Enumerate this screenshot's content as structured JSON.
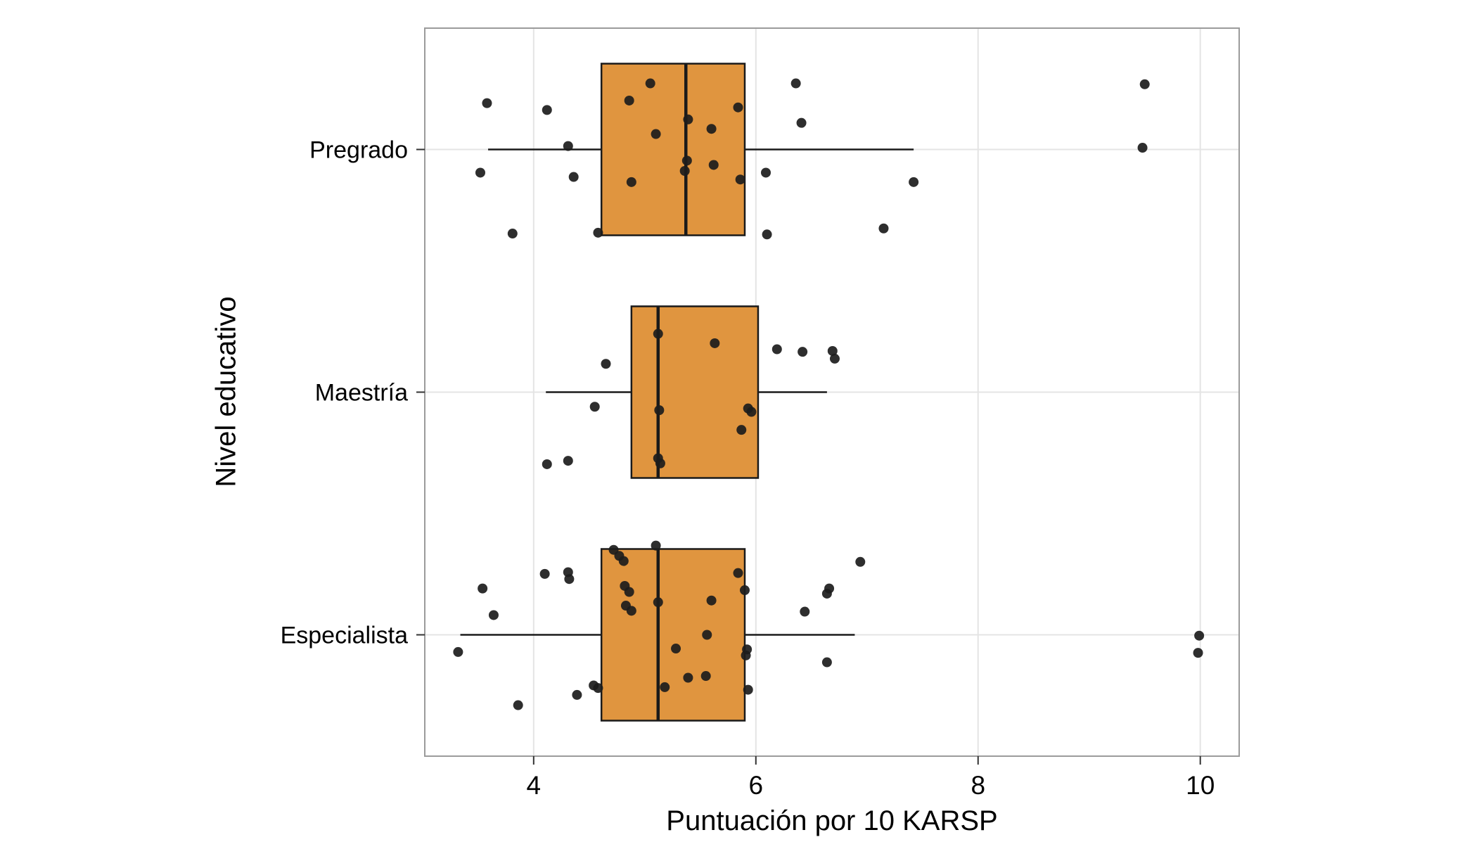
{
  "chart_data": {
    "type": "boxplot",
    "orientation": "horizontal",
    "title": "",
    "xlabel": "Puntuación por 10 KARSP",
    "ylabel": "Nivel educativo",
    "x_ticks": [
      4,
      6,
      8,
      10
    ],
    "x_range": [
      3.02,
      10.35
    ],
    "grid": true,
    "box_fill": "#E0953F",
    "box_stroke": "#1a1a1a",
    "point_color": "#1c1c1c",
    "grid_color": "#e4e4e4",
    "panel_border_color": "#9b9b9b",
    "categories": [
      {
        "label": "Pregrado",
        "whisker_low": 3.59,
        "q1": 4.61,
        "median": 5.37,
        "q3": 5.9,
        "whisker_high": 7.42,
        "points": [
          [
            3.52,
            0.27
          ],
          [
            3.58,
            -0.54
          ],
          [
            3.81,
            0.98
          ],
          [
            4.12,
            -0.46
          ],
          [
            4.31,
            -0.04
          ],
          [
            4.36,
            0.32
          ],
          [
            4.58,
            0.97
          ],
          [
            4.86,
            -0.57
          ],
          [
            4.88,
            0.38
          ],
          [
            5.05,
            -0.77
          ],
          [
            5.1,
            -0.18
          ],
          [
            5.36,
            0.25
          ],
          [
            5.38,
            0.13
          ],
          [
            5.39,
            -0.35
          ],
          [
            5.6,
            -0.24
          ],
          [
            5.62,
            0.18
          ],
          [
            5.84,
            -0.49
          ],
          [
            5.86,
            0.35
          ],
          [
            6.09,
            0.27
          ],
          [
            6.1,
            0.99
          ],
          [
            6.36,
            -0.77
          ],
          [
            6.41,
            -0.31
          ],
          [
            7.15,
            0.92
          ],
          [
            7.42,
            0.38
          ],
          [
            9.48,
            -0.02
          ],
          [
            9.5,
            -0.76
          ]
        ]
      },
      {
        "label": "Maestría",
        "whisker_low": 4.11,
        "q1": 4.88,
        "median": 5.12,
        "q3": 6.02,
        "whisker_high": 6.64,
        "points": [
          [
            4.12,
            0.84
          ],
          [
            4.31,
            0.8
          ],
          [
            4.55,
            0.17
          ],
          [
            4.65,
            -0.33
          ],
          [
            5.12,
            -0.68
          ],
          [
            5.12,
            0.77
          ],
          [
            5.13,
            0.21
          ],
          [
            5.14,
            0.83
          ],
          [
            5.63,
            -0.57
          ],
          [
            5.87,
            0.44
          ],
          [
            5.93,
            0.19
          ],
          [
            5.96,
            0.23
          ],
          [
            6.19,
            -0.5
          ],
          [
            6.42,
            -0.47
          ],
          [
            6.69,
            -0.48
          ],
          [
            6.71,
            -0.39
          ]
        ]
      },
      {
        "label": "Especialista",
        "whisker_low": 3.34,
        "q1": 4.61,
        "median": 5.12,
        "q3": 5.9,
        "whisker_high": 6.89,
        "points": [
          [
            3.32,
            0.2
          ],
          [
            3.54,
            -0.54
          ],
          [
            3.64,
            -0.23
          ],
          [
            3.86,
            0.82
          ],
          [
            4.1,
            -0.71
          ],
          [
            4.31,
            -0.73
          ],
          [
            4.32,
            -0.65
          ],
          [
            4.39,
            0.7
          ],
          [
            4.54,
            0.59
          ],
          [
            4.58,
            0.62
          ],
          [
            4.72,
            -0.99
          ],
          [
            4.77,
            -0.92
          ],
          [
            4.81,
            -0.86
          ],
          [
            4.82,
            -0.57
          ],
          [
            4.83,
            -0.34
          ],
          [
            4.86,
            -0.5
          ],
          [
            4.88,
            -0.28
          ],
          [
            5.1,
            -1.04
          ],
          [
            5.12,
            -0.38
          ],
          [
            5.18,
            0.61
          ],
          [
            5.28,
            0.16
          ],
          [
            5.39,
            0.5
          ],
          [
            5.55,
            0.48
          ],
          [
            5.56,
            0.0
          ],
          [
            5.6,
            -0.4
          ],
          [
            5.84,
            -0.72
          ],
          [
            5.9,
            -0.52
          ],
          [
            5.92,
            0.17
          ],
          [
            5.91,
            0.24
          ],
          [
            5.93,
            0.64
          ],
          [
            6.44,
            -0.27
          ],
          [
            6.64,
            -0.48
          ],
          [
            6.64,
            0.32
          ],
          [
            6.66,
            -0.54
          ],
          [
            6.94,
            -0.85
          ],
          [
            9.98,
            0.21
          ],
          [
            9.99,
            0.01
          ]
        ]
      }
    ]
  }
}
